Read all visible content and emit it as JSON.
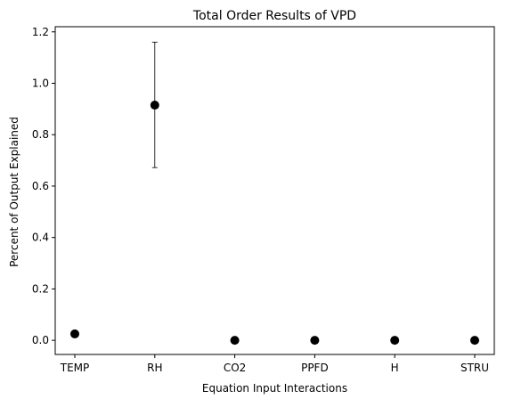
{
  "chart_data": {
    "type": "scatter",
    "title": "Total Order Results of VPD",
    "xlabel": "Equation Input Interactions",
    "ylabel": "Percent of Output Explained",
    "categories": [
      "TEMP",
      "RH",
      "CO2",
      "PPFD",
      "H",
      "STRU"
    ],
    "values": [
      0.025,
      0.915,
      0.0,
      0.0,
      0.0,
      0.0
    ],
    "error_bars": [
      null,
      {
        "low": 0.672,
        "high": 1.16
      },
      null,
      null,
      null,
      null
    ],
    "y_ticks": [
      "0.0",
      "0.2",
      "0.4",
      "0.6",
      "0.8",
      "1.0",
      "1.2"
    ],
    "ylim": [
      -0.055,
      1.22
    ],
    "grid": false,
    "legend": "none",
    "colors": {
      "marker": "#000000",
      "error_bar": "#000000",
      "axes": "#000000"
    }
  }
}
